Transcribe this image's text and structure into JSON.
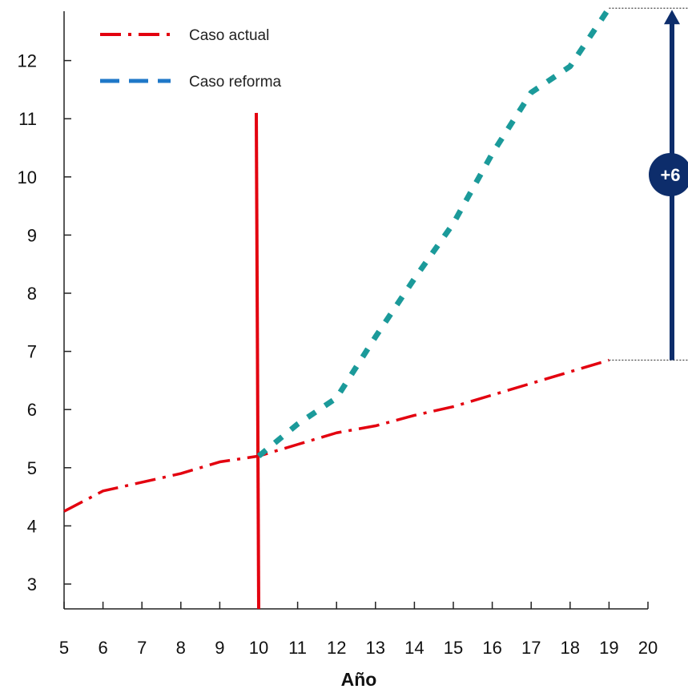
{
  "chart_data": {
    "type": "line",
    "xlabel": "Año",
    "ylabel": "",
    "xlim": [
      5,
      20
    ],
    "ylim": [
      2.6,
      13
    ],
    "x_ticks": [
      5,
      6,
      7,
      8,
      9,
      10,
      11,
      12,
      13,
      14,
      15,
      16,
      17,
      18,
      19,
      20
    ],
    "y_ticks": [
      3,
      4,
      5,
      6,
      7,
      8,
      9,
      10,
      11,
      12
    ],
    "legend_position": "top-left",
    "grid": false,
    "series": [
      {
        "name": "Caso actual",
        "color": "#e3000f",
        "style": "dash-dot",
        "x": [
          5,
          6,
          7,
          8,
          9,
          10,
          11,
          12,
          13,
          14,
          15,
          16,
          17,
          18,
          19
        ],
        "y": [
          4.25,
          4.6,
          4.75,
          4.9,
          5.1,
          5.2,
          5.4,
          5.6,
          5.72,
          5.9,
          6.05,
          6.25,
          6.45,
          6.65,
          6.85
        ]
      },
      {
        "name": "Caso reforma",
        "color": "#1b9a9a",
        "legend_color": "#1f78c8",
        "style": "dashed",
        "x": [
          10,
          11,
          12,
          13,
          14,
          15,
          16,
          17,
          18,
          19
        ],
        "y": [
          5.2,
          5.75,
          6.2,
          7.25,
          8.25,
          9.2,
          10.4,
          11.45,
          11.9,
          12.9
        ]
      }
    ],
    "reference_line": {
      "x": 10,
      "color": "#e3000f",
      "y_from": 2.6,
      "y_to": 11.1
    },
    "annotation": {
      "text": "+6",
      "color": "#0d2d6b",
      "y_from": 6.85,
      "y_to": 12.9
    }
  }
}
